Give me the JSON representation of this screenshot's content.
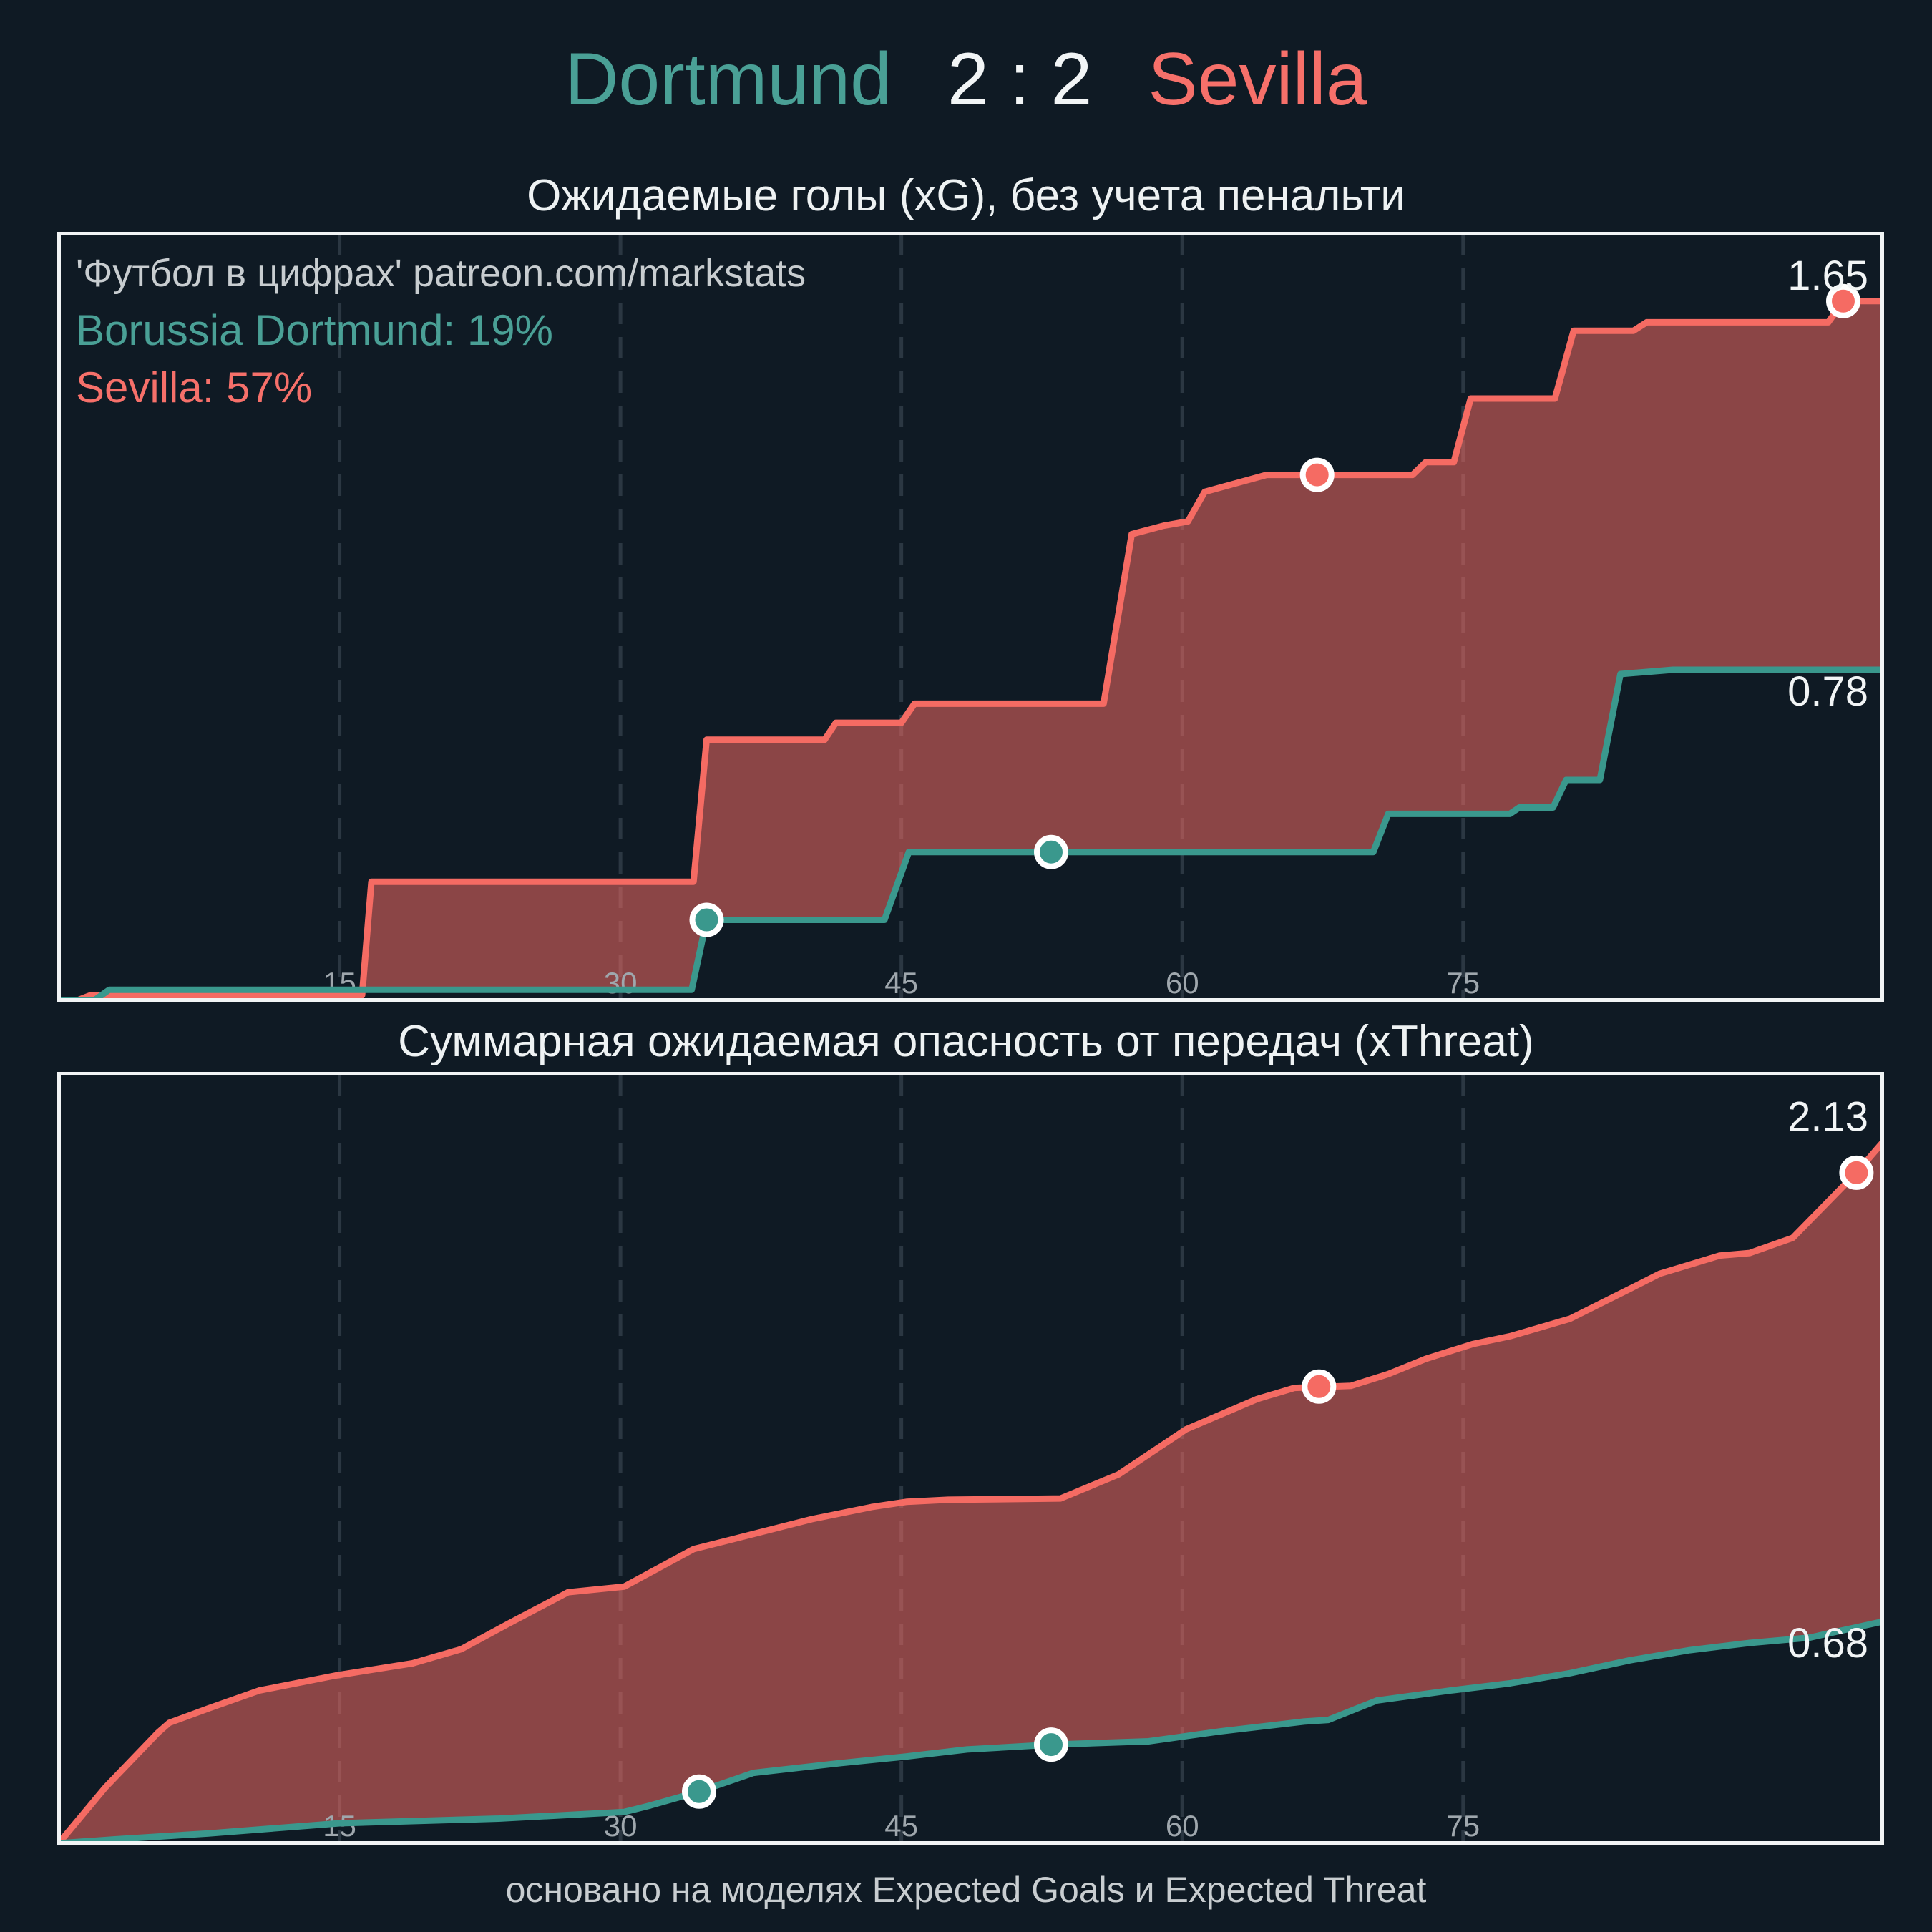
{
  "header": {
    "home": "Dortmund",
    "score": "2 : 2",
    "away": "Sevilla"
  },
  "footer": {
    "caption": "основано на моделях Expected Goals и Expected Threat"
  },
  "colors": {
    "bg": "#0f1a24",
    "home_text": "#4aa096",
    "away_text": "#f6706a",
    "white_text": "#f2f5f6",
    "muted_text": "#c8cdd0",
    "tick_text": "#9fa7ad",
    "teal_line": "#3a988d",
    "red_line": "#f56b63",
    "area_fill": "rgba(245,107,99,0.54)",
    "grid_line": "#2b3742",
    "plot_border": "#f1f4f5",
    "marker_ring": "#ffffff"
  },
  "chart_data": [
    {
      "type": "area",
      "title": "Ожидаемые голы (xG), без учета пенальти",
      "legend": {
        "watermark": "'Футбол в цифрах' patreon.com/markstats",
        "home_label": "Borussia Dortmund: 19%",
        "away_label": "Sevilla: 57%"
      },
      "xlabel": "",
      "ylabel": "",
      "x_ticks": [
        15,
        30,
        45,
        60,
        75
      ],
      "x_max": 97.4,
      "y_max": 1.81,
      "grid": "vertical-dashed",
      "series": [
        {
          "name": "Sevilla",
          "color_key": "red_line",
          "end_label": "1.65",
          "label_side": "above",
          "points": [
            [
              0,
              0
            ],
            [
              1.0,
              0
            ],
            [
              1.7,
              0.012
            ],
            [
              16.2,
              0.012
            ],
            [
              16.7,
              0.28
            ],
            [
              33.9,
              0.28
            ],
            [
              34.6,
              0.615
            ],
            [
              40.9,
              0.615
            ],
            [
              41.5,
              0.655
            ],
            [
              45.0,
              0.655
            ],
            [
              45.7,
              0.7
            ],
            [
              55.8,
              0.7
            ],
            [
              57.3,
              1.1
            ],
            [
              59.0,
              1.12
            ],
            [
              60.3,
              1.13
            ],
            [
              61.2,
              1.2
            ],
            [
              64.5,
              1.24
            ],
            [
              72.3,
              1.24
            ],
            [
              73.0,
              1.27
            ],
            [
              74.5,
              1.27
            ],
            [
              75.4,
              1.42
            ],
            [
              79.9,
              1.42
            ],
            [
              80.9,
              1.58
            ],
            [
              84.1,
              1.58
            ],
            [
              84.8,
              1.6
            ],
            [
              94.5,
              1.6
            ],
            [
              95.3,
              1.65
            ],
            [
              97.4,
              1.65
            ]
          ],
          "markers": [
            [
              67.2,
              1.24
            ],
            [
              95.3,
              1.65
            ]
          ]
        },
        {
          "name": "Borussia Dortmund",
          "color_key": "teal_line",
          "end_label": "0.78",
          "label_side": "below",
          "points": [
            [
              0,
              0
            ],
            [
              1.9,
              0
            ],
            [
              2.7,
              0.025
            ],
            [
              33.8,
              0.025
            ],
            [
              34.6,
              0.19
            ],
            [
              44.1,
              0.19
            ],
            [
              45.4,
              0.35
            ],
            [
              70.2,
              0.35
            ],
            [
              71.0,
              0.44
            ],
            [
              77.5,
              0.44
            ],
            [
              78.0,
              0.455
            ],
            [
              79.8,
              0.455
            ],
            [
              80.5,
              0.52
            ],
            [
              82.3,
              0.52
            ],
            [
              83.4,
              0.77
            ],
            [
              86.2,
              0.78
            ],
            [
              97.4,
              0.78
            ]
          ],
          "markers": [
            [
              34.6,
              0.19
            ],
            [
              53.0,
              0.35
            ]
          ]
        }
      ]
    },
    {
      "type": "area",
      "title": "Суммарная ожидаемая опасность от передач (xThreat)",
      "legend": null,
      "xlabel": "",
      "ylabel": "",
      "x_ticks": [
        15,
        30,
        45,
        60,
        75
      ],
      "x_max": 97.4,
      "y_max": 2.34,
      "grid": "vertical-dashed",
      "series": [
        {
          "name": "Sevilla",
          "color_key": "red_line",
          "end_label": "2.13",
          "label_side": "above",
          "points": [
            [
              0,
              0
            ],
            [
              2.5,
              0.17
            ],
            [
              5.3,
              0.336
            ],
            [
              5.9,
              0.366
            ],
            [
              8.0,
              0.41
            ],
            [
              10.7,
              0.464
            ],
            [
              14.8,
              0.51
            ],
            [
              18.9,
              0.547
            ],
            [
              21.5,
              0.59
            ],
            [
              24.0,
              0.667
            ],
            [
              27.2,
              0.763
            ],
            [
              30.2,
              0.78
            ],
            [
              33.9,
              0.894
            ],
            [
              37.1,
              0.94
            ],
            [
              40.2,
              0.985
            ],
            [
              43.4,
              1.022
            ],
            [
              45.3,
              1.038
            ],
            [
              47.5,
              1.044
            ],
            [
              53.5,
              1.048
            ],
            [
              56.6,
              1.121
            ],
            [
              60.2,
              1.258
            ],
            [
              64.0,
              1.35
            ],
            [
              66.0,
              1.384
            ],
            [
              69.0,
              1.39
            ],
            [
              71.0,
              1.426
            ],
            [
              73.0,
              1.472
            ],
            [
              75.5,
              1.517
            ],
            [
              77.5,
              1.541
            ],
            [
              80.7,
              1.594
            ],
            [
              83.9,
              1.685
            ],
            [
              85.5,
              1.731
            ],
            [
              88.7,
              1.786
            ],
            [
              90.3,
              1.794
            ],
            [
              92.6,
              1.84
            ],
            [
              96.0,
              2.038
            ],
            [
              97.4,
              2.13
            ]
          ],
          "markers": [
            [
              67.3,
              1.388
            ],
            [
              96.0,
              2.038
            ]
          ]
        },
        {
          "name": "Borussia Dortmund",
          "color_key": "teal_line",
          "end_label": "0.68",
          "label_side": "below",
          "points": [
            [
              0,
              0
            ],
            [
              3.0,
              0.012
            ],
            [
              8.0,
              0.03
            ],
            [
              15.0,
              0.061
            ],
            [
              23.5,
              0.075
            ],
            [
              30.2,
              0.095
            ],
            [
              31.6,
              0.115
            ],
            [
              34.2,
              0.157
            ],
            [
              37.1,
              0.214
            ],
            [
              41.8,
              0.244
            ],
            [
              45.3,
              0.264
            ],
            [
              48.5,
              0.285
            ],
            [
              53.0,
              0.3
            ],
            [
              58.2,
              0.31
            ],
            [
              62.0,
              0.34
            ],
            [
              66.5,
              0.37
            ],
            [
              67.8,
              0.375
            ],
            [
              70.4,
              0.434
            ],
            [
              74.3,
              0.464
            ],
            [
              77.5,
              0.486
            ],
            [
              80.7,
              0.517
            ],
            [
              83.9,
              0.556
            ],
            [
              87.1,
              0.587
            ],
            [
              90.3,
              0.609
            ],
            [
              93.5,
              0.625
            ],
            [
              97.4,
              0.674
            ]
          ],
          "markers": [
            [
              34.2,
              0.157
            ],
            [
              53.0,
              0.3
            ]
          ]
        }
      ]
    }
  ]
}
